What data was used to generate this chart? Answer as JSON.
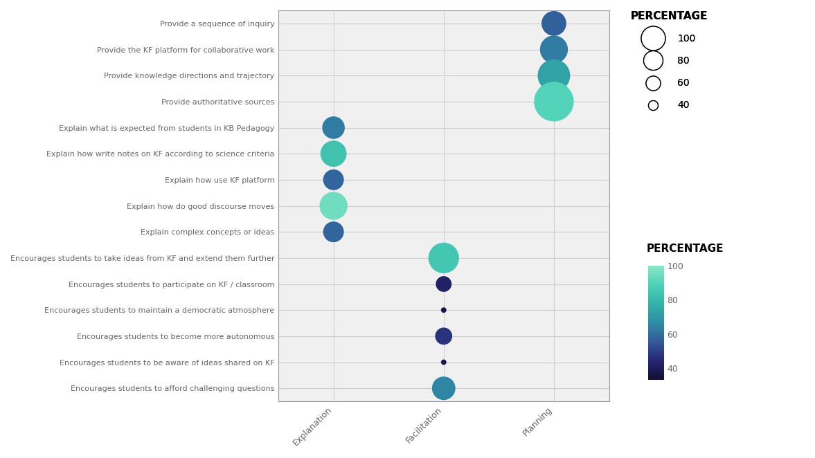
{
  "rows": [
    "Provide a sequence of inquiry",
    "Provide the KF platform for collaborative work",
    "Provide knowledge directions and trajectory",
    "Provide authoritative sources",
    "Explain what is expected from students in KB Pedagogy",
    "Explain how write notes on KF according to science criteria",
    "Explain how use KF platform",
    "Explain how do good discourse moves",
    "Explain complex concepts or ideas",
    "Encourages students to take ideas from KF and extend them further",
    "Encourages students to participate on KF / classroom",
    "Encourages students to maintain a democratic atmosphere",
    "Encourages students to become more autonomous",
    "Encourages students to be aware of ideas shared on KF",
    "Encourages students to afford challenging questions"
  ],
  "columns": [
    "Explanation",
    "Facilitation",
    "Planning"
  ],
  "data": [
    {
      "row": 0,
      "col": 2,
      "pct": 55,
      "color_pct": 57
    },
    {
      "row": 1,
      "col": 2,
      "pct": 62,
      "color_pct": 63
    },
    {
      "row": 2,
      "col": 2,
      "pct": 72,
      "color_pct": 73
    },
    {
      "row": 3,
      "col": 2,
      "pct": 88,
      "color_pct": 90
    },
    {
      "row": 4,
      "col": 0,
      "pct": 50,
      "color_pct": 63
    },
    {
      "row": 5,
      "col": 0,
      "pct": 58,
      "color_pct": 83
    },
    {
      "row": 6,
      "col": 0,
      "pct": 46,
      "color_pct": 58
    },
    {
      "row": 7,
      "col": 0,
      "pct": 62,
      "color_pct": 95
    },
    {
      "row": 8,
      "col": 0,
      "pct": 46,
      "color_pct": 58
    },
    {
      "row": 9,
      "col": 1,
      "pct": 68,
      "color_pct": 85
    },
    {
      "row": 10,
      "col": 1,
      "pct": 35,
      "color_pct": 42
    },
    {
      "row": 11,
      "col": 1,
      "pct": 12,
      "color_pct": 37
    },
    {
      "row": 12,
      "col": 1,
      "pct": 38,
      "color_pct": 47
    },
    {
      "row": 13,
      "col": 1,
      "pct": 12,
      "color_pct": 37
    },
    {
      "row": 14,
      "col": 1,
      "pct": 52,
      "color_pct": 65
    }
  ],
  "size_legend_values": [
    100,
    80,
    60,
    40
  ],
  "colorbar_ticks": [
    40,
    60,
    80,
    100
  ],
  "cmap": "GnBu_r",
  "bg_color": "#f0f0f0",
  "grid_color": "#cccccc",
  "text_color": "#666666",
  "font_size_labels": 8.0,
  "font_size_ticks": 9.0,
  "vmin": 33,
  "vmax": 100,
  "size_scale": 2200,
  "size_ref": 100
}
